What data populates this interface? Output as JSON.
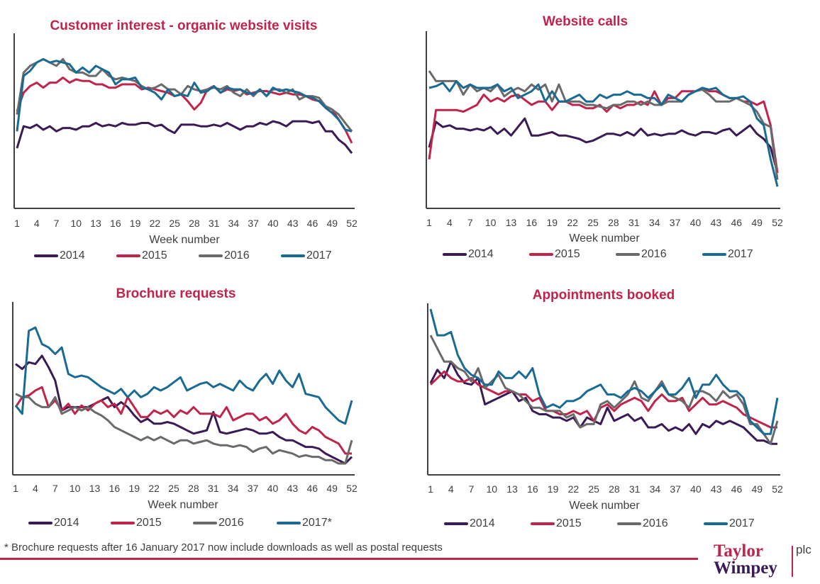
{
  "colors": {
    "2014": "#3b1b55",
    "2015": "#c0244a",
    "2016": "#6a6a6a",
    "2017": "#1a6b94",
    "title": "#c0244a",
    "axis": "#404040"
  },
  "chart_data": [
    {
      "type": "line",
      "title": "Customer interest - organic website visits",
      "xlabel": "Week number",
      "ylabel": "",
      "x_ticks": [
        1,
        4,
        7,
        10,
        13,
        16,
        19,
        22,
        25,
        28,
        31,
        34,
        37,
        40,
        43,
        46,
        49,
        52
      ],
      "ylim": [
        0,
        100
      ],
      "legend": {
        "position": "bottom",
        "labels": [
          "2014",
          "2015",
          "2016",
          "2017"
        ]
      },
      "series": [
        {
          "name": "2014",
          "values": [
            35,
            48,
            47,
            49,
            46,
            48,
            45,
            47,
            47,
            46,
            48,
            48,
            50,
            48,
            49,
            48,
            50,
            49,
            49,
            50,
            50,
            48,
            49,
            46,
            44,
            49,
            49,
            49,
            48,
            48,
            49,
            48,
            50,
            48,
            46,
            48,
            48,
            50,
            49,
            51,
            50,
            48,
            51,
            51,
            51,
            50,
            51,
            45,
            45,
            40,
            37,
            32
          ]
        },
        {
          "name": "2015",
          "values": [
            57,
            68,
            72,
            74,
            71,
            74,
            74,
            77,
            74,
            76,
            75,
            75,
            73,
            73,
            71,
            71,
            73,
            73,
            73,
            70,
            71,
            70,
            69,
            68,
            66,
            67,
            63,
            58,
            62,
            70,
            72,
            68,
            70,
            69,
            70,
            67,
            68,
            69,
            69,
            68,
            67,
            68,
            67,
            67,
            66,
            64,
            63,
            60,
            58,
            52,
            46,
            38
          ]
        },
        {
          "name": "2016",
          "values": [
            55,
            80,
            84,
            86,
            88,
            86,
            84,
            88,
            82,
            80,
            80,
            78,
            78,
            82,
            78,
            76,
            77,
            76,
            75,
            72,
            70,
            71,
            73,
            70,
            70,
            67,
            72,
            70,
            69,
            70,
            71,
            70,
            72,
            68,
            66,
            70,
            66,
            70,
            66,
            70,
            70,
            68,
            70,
            64,
            66,
            66,
            65,
            60,
            58,
            55,
            50,
            45
          ]
        },
        {
          "name": "2017",
          "values": [
            45,
            78,
            81,
            86,
            88,
            86,
            87,
            86,
            85,
            80,
            83,
            80,
            84,
            82,
            80,
            73,
            76,
            76,
            77,
            71,
            70,
            68,
            64,
            70,
            66,
            67,
            66,
            74,
            68,
            69,
            72,
            68,
            71,
            70,
            70,
            68,
            67,
            70,
            66,
            71,
            69,
            70,
            69,
            68,
            66,
            65,
            63,
            59,
            56,
            52,
            46,
            45
          ]
        }
      ]
    },
    {
      "type": "line",
      "title": "Website calls",
      "xlabel": "Week number",
      "ylabel": "",
      "x_ticks": [
        1,
        4,
        7,
        10,
        13,
        16,
        19,
        22,
        25,
        28,
        31,
        34,
        37,
        40,
        43,
        46,
        49,
        52
      ],
      "ylim": [
        0,
        100
      ],
      "legend": {
        "position": "bottom",
        "labels": [
          "2014",
          "2015",
          "2016",
          "2017"
        ]
      },
      "series": [
        {
          "name": "2014",
          "values": [
            35,
            50,
            47,
            48,
            46,
            46,
            45,
            46,
            45,
            47,
            43,
            46,
            42,
            47,
            52,
            42,
            42,
            43,
            44,
            42,
            42,
            41,
            40,
            38,
            39,
            41,
            43,
            43,
            42,
            44,
            42,
            46,
            42,
            43,
            42,
            43,
            43,
            45,
            43,
            42,
            44,
            44,
            43,
            45,
            46,
            42,
            45,
            48,
            43,
            40,
            35,
            20
          ]
        },
        {
          "name": "2015",
          "values": [
            28,
            57,
            57,
            57,
            57,
            56,
            58,
            60,
            66,
            62,
            64,
            62,
            65,
            66,
            63,
            60,
            62,
            62,
            57,
            62,
            62,
            60,
            60,
            58,
            58,
            60,
            56,
            60,
            58,
            60,
            60,
            62,
            60,
            68,
            60,
            64,
            64,
            68,
            68,
            68,
            70,
            68,
            68,
            66,
            64,
            64,
            62,
            62,
            60,
            62,
            48,
            20
          ]
        },
        {
          "name": "2016",
          "values": [
            80,
            74,
            74,
            74,
            74,
            66,
            72,
            68,
            70,
            68,
            72,
            65,
            68,
            70,
            68,
            72,
            69,
            72,
            62,
            72,
            62,
            62,
            62,
            60,
            60,
            59,
            58,
            60,
            60,
            62,
            62,
            60,
            62,
            60,
            60,
            62,
            62,
            62,
            66,
            68,
            69,
            66,
            62,
            62,
            62,
            64,
            62,
            60,
            56,
            49,
            47,
            16
          ]
        },
        {
          "name": "2017",
          "values": [
            70,
            71,
            73,
            68,
            74,
            70,
            72,
            70,
            70,
            70,
            72,
            68,
            70,
            64,
            66,
            68,
            72,
            62,
            68,
            62,
            62,
            64,
            66,
            62,
            62,
            66,
            64,
            66,
            66,
            68,
            66,
            66,
            64,
            64,
            60,
            66,
            64,
            62,
            66,
            68,
            70,
            69,
            70,
            66,
            64,
            64,
            65,
            62,
            52,
            48,
            28,
            12
          ]
        }
      ]
    },
    {
      "type": "line",
      "title": "Brochure requests",
      "xlabel": "Week number",
      "ylabel": "",
      "x_ticks": [
        1,
        4,
        7,
        10,
        13,
        16,
        19,
        22,
        25,
        28,
        31,
        34,
        37,
        40,
        43,
        46,
        49,
        52
      ],
      "ylim": [
        0,
        100
      ],
      "legend": {
        "position": "bottom",
        "labels": [
          "2014",
          "2015",
          "2016",
          "2017*"
        ]
      },
      "series": [
        {
          "name": "2014",
          "values": [
            66,
            63,
            67,
            66,
            71,
            64,
            56,
            38,
            40,
            40,
            40,
            40,
            42,
            44,
            46,
            40,
            43,
            40,
            35,
            31,
            33,
            30,
            30,
            31,
            30,
            28,
            26,
            24,
            25,
            26,
            37,
            25,
            24,
            25,
            26,
            27,
            26,
            24,
            24,
            25,
            22,
            20,
            20,
            18,
            16,
            16,
            15,
            12,
            10,
            8,
            6,
            10
          ]
        },
        {
          "name": "2015",
          "values": [
            40,
            46,
            47,
            50,
            52,
            40,
            44,
            38,
            42,
            36,
            41,
            38,
            42,
            44,
            40,
            42,
            36,
            46,
            40,
            34,
            34,
            38,
            36,
            38,
            34,
            38,
            36,
            40,
            36,
            36,
            36,
            34,
            40,
            32,
            34,
            36,
            36,
            32,
            34,
            30,
            32,
            36,
            30,
            26,
            24,
            28,
            26,
            22,
            20,
            18,
            12,
            12
          ]
        },
        {
          "name": "2016",
          "values": [
            48,
            46,
            46,
            42,
            40,
            40,
            46,
            36,
            38,
            40,
            38,
            40,
            37,
            35,
            32,
            28,
            26,
            24,
            22,
            20,
            22,
            20,
            22,
            20,
            18,
            20,
            20,
            18,
            19,
            20,
            18,
            17,
            17,
            16,
            17,
            16,
            13,
            15,
            16,
            12,
            14,
            13,
            12,
            10,
            11,
            10,
            10,
            8,
            8,
            6,
            6,
            20
          ]
        },
        {
          "name": "2017*",
          "values": [
            41,
            36,
            86,
            88,
            78,
            76,
            72,
            76,
            60,
            58,
            59,
            58,
            55,
            52,
            50,
            48,
            51,
            46,
            50,
            46,
            48,
            52,
            50,
            52,
            55,
            58,
            50,
            52,
            54,
            55,
            52,
            54,
            52,
            50,
            56,
            52,
            50,
            56,
            60,
            54,
            62,
            56,
            52,
            60,
            48,
            47,
            46,
            40,
            36,
            32,
            30,
            44
          ]
        }
      ]
    },
    {
      "type": "line",
      "title": "Appointments booked",
      "xlabel": "Week number",
      "ylabel": "",
      "x_ticks": [
        1,
        4,
        7,
        10,
        13,
        16,
        19,
        22,
        25,
        28,
        31,
        34,
        37,
        40,
        43,
        46,
        49,
        52
      ],
      "ylim": [
        0,
        100
      ],
      "legend": {
        "position": "bottom",
        "labels": [
          "2014",
          "2015",
          "2016",
          "2017"
        ]
      },
      "series": [
        {
          "name": "2014",
          "values": [
            55,
            63,
            58,
            68,
            60,
            55,
            54,
            58,
            42,
            44,
            46,
            48,
            50,
            44,
            46,
            38,
            36,
            36,
            34,
            34,
            32,
            34,
            28,
            34,
            32,
            30,
            40,
            32,
            34,
            36,
            32,
            34,
            28,
            28,
            30,
            26,
            28,
            26,
            30,
            24,
            30,
            28,
            32,
            30,
            32,
            30,
            28,
            24,
            20,
            20,
            18,
            18
          ]
        },
        {
          "name": "2015",
          "values": [
            54,
            58,
            62,
            58,
            56,
            56,
            58,
            54,
            52,
            50,
            48,
            50,
            50,
            48,
            48,
            44,
            46,
            38,
            38,
            36,
            36,
            38,
            36,
            38,
            32,
            40,
            42,
            38,
            42,
            44,
            46,
            44,
            38,
            44,
            48,
            44,
            44,
            46,
            38,
            42,
            46,
            42,
            42,
            44,
            42,
            40,
            36,
            34,
            32,
            30,
            28,
            28
          ]
        },
        {
          "name": "2016",
          "values": [
            84,
            76,
            68,
            68,
            64,
            62,
            56,
            64,
            52,
            56,
            60,
            52,
            50,
            48,
            44,
            40,
            40,
            38,
            38,
            38,
            34,
            36,
            28,
            30,
            30,
            42,
            44,
            40,
            44,
            48,
            56,
            46,
            44,
            50,
            56,
            48,
            46,
            44,
            40,
            50,
            50,
            48,
            44,
            50,
            46,
            48,
            42,
            30,
            30,
            24,
            18,
            32
          ]
        },
        {
          "name": "2017",
          "values": [
            100,
            84,
            84,
            86,
            72,
            64,
            60,
            58,
            54,
            54,
            62,
            58,
            58,
            62,
            58,
            64,
            48,
            40,
            42,
            40,
            44,
            44,
            46,
            50,
            52,
            54,
            48,
            48,
            46,
            50,
            52,
            50,
            46,
            50,
            54,
            48,
            48,
            52,
            58,
            46,
            54,
            54,
            60,
            54,
            50,
            50,
            46,
            32,
            28,
            24,
            24,
            46
          ]
        }
      ]
    }
  ],
  "footnote": "* Brochure requests after 16 January 2017 now include downloads as well as postal requests",
  "logo": {
    "line1": "Taylor",
    "line2": "Wimpey",
    "suffix": "plc"
  }
}
